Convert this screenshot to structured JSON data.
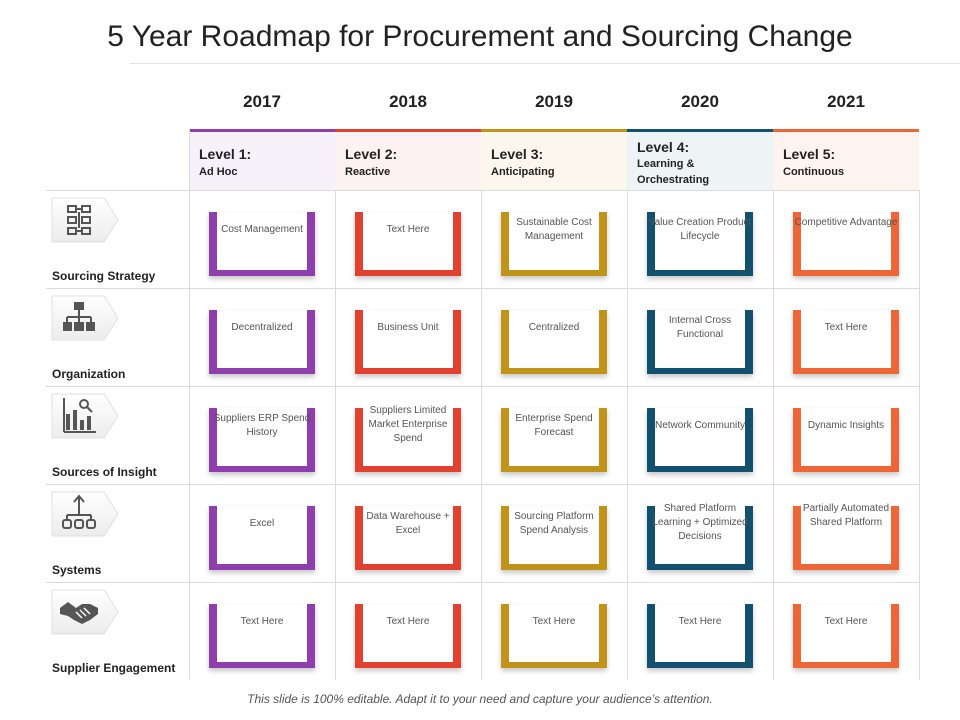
{
  "title": "5 Year Roadmap for Procurement and Sourcing Change",
  "years": [
    "2017",
    "2018",
    "2019",
    "2020",
    "2021"
  ],
  "levels": [
    {
      "name": "Level 1:",
      "sub": "Ad Hoc",
      "color": "#8e3fad",
      "bg": "#f7f1fa"
    },
    {
      "name": "Level 2:",
      "sub": "Reactive",
      "color": "#e2412f",
      "bg": "#fcf2f1"
    },
    {
      "name": "Level 3:",
      "sub": "Anticipating",
      "color": "#c09418",
      "bg": "#fbf7ec"
    },
    {
      "name": "Level 4:",
      "sub": "Learning & Orchestrating",
      "color": "#11506f",
      "bg": "#eef3f6"
    },
    {
      "name": "Level 5:",
      "sub": "Continuous",
      "color": "#ee6536",
      "bg": "#fdf3ef"
    }
  ],
  "rows": [
    {
      "label": "Sourcing Strategy",
      "icon": "flowchart-icon",
      "cells": [
        "Cost Management",
        "Text Here",
        "Sustainable Cost Management",
        "Value Creation Product Lifecycle",
        "Competitive Advantage"
      ]
    },
    {
      "label": "Organization",
      "icon": "org-chart-icon",
      "cells": [
        "Decentralized",
        "Business Unit",
        "Centralized",
        "Internal Cross Functional",
        "Text Here"
      ]
    },
    {
      "label": "Sources of Insight",
      "icon": "analytics-chart-icon",
      "cells": [
        "Suppliers ERP Spend History",
        "Suppliers Limited Market Enterprise Spend",
        "Enterprise Spend Forecast",
        "Network Community",
        "Dynamic Insights"
      ]
    },
    {
      "label": "Systems",
      "icon": "network-hierarchy-icon",
      "cells": [
        "Excel",
        "Data Warehouse + Excel",
        "Sourcing Platform Spend Analysis",
        "Shared Platform Learning + Optimized Decisions",
        "Partially Automated Shared Platform"
      ]
    },
    {
      "label": "Supplier Engagement",
      "icon": "handshake-icon",
      "cells": [
        "Text Here",
        "Text Here",
        "Text Here",
        "Text Here",
        "Text Here"
      ]
    }
  ],
  "footer": "This slide is 100% editable. Adapt it to your need and capture your audience’s attention."
}
